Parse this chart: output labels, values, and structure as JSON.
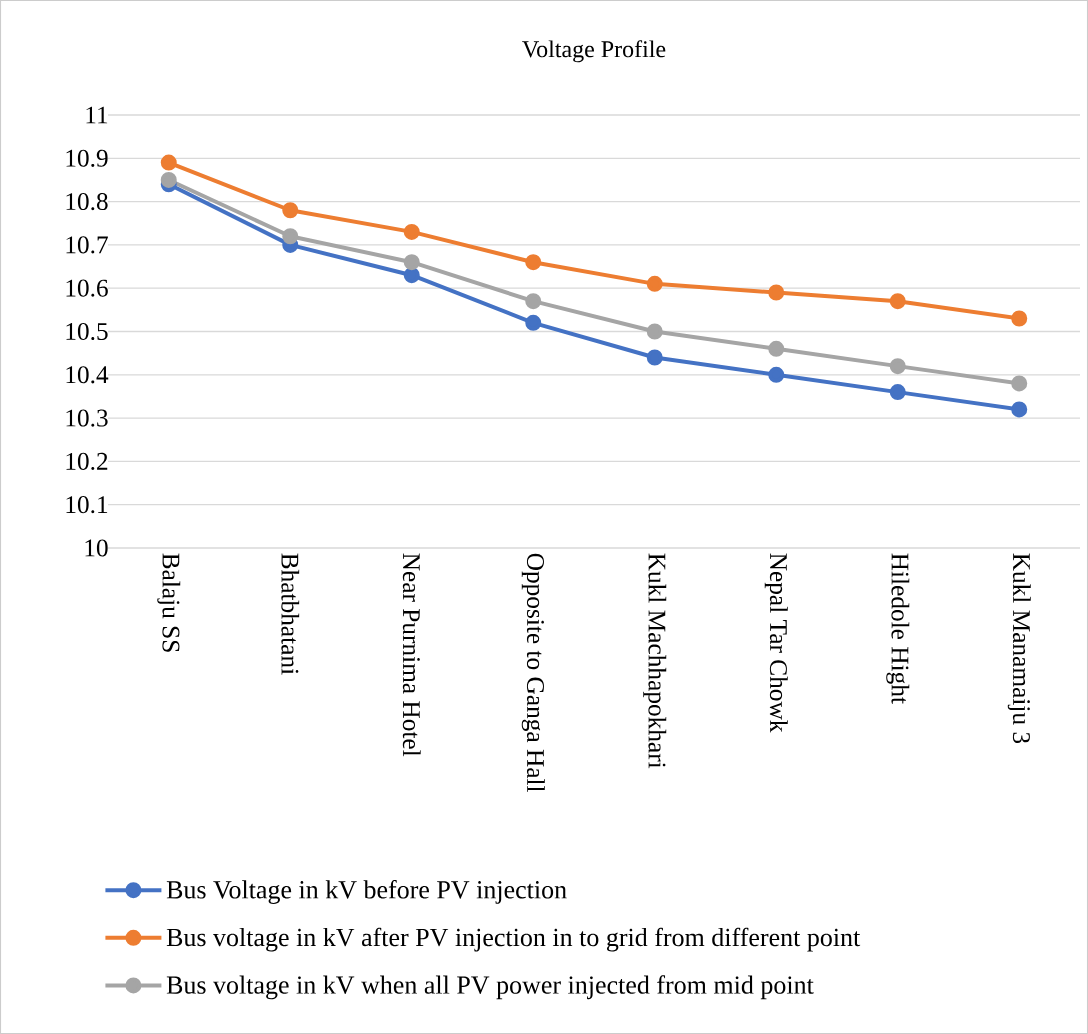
{
  "chart_data": {
    "type": "line",
    "title": "Voltage Profile",
    "categories": [
      "Balaju SS",
      "Bhatbhatani",
      "Near Purnima Hotel",
      "Opposite to Ganga Hall",
      "Kukl Machhapokhari",
      "Nepal Tar Chowk",
      "Hiledole Hight",
      "Kukl Manamaiju 3"
    ],
    "series": [
      {
        "name": "Bus Voltage in kV before PV injection",
        "color": "#4472c4",
        "values": [
          10.84,
          10.7,
          10.63,
          10.52,
          10.44,
          10.4,
          10.36,
          10.32
        ]
      },
      {
        "name": "Bus voltage in kV after PV injection in to grid from different point",
        "color": "#ed7d31",
        "values": [
          10.89,
          10.78,
          10.73,
          10.66,
          10.61,
          10.59,
          10.57,
          10.53
        ]
      },
      {
        "name": "Bus voltage in kV when all PV power injected from mid point",
        "color": "#a5a5a5",
        "values": [
          10.85,
          10.72,
          10.66,
          10.57,
          10.5,
          10.46,
          10.42,
          10.38
        ]
      }
    ],
    "ylim": [
      10,
      11
    ],
    "yticks": [
      10,
      10.1,
      10.2,
      10.3,
      10.4,
      10.5,
      10.6,
      10.7,
      10.8,
      10.9,
      11
    ],
    "grid": "y",
    "legend": "bottom",
    "marker": "circle",
    "line_style": "solid"
  }
}
